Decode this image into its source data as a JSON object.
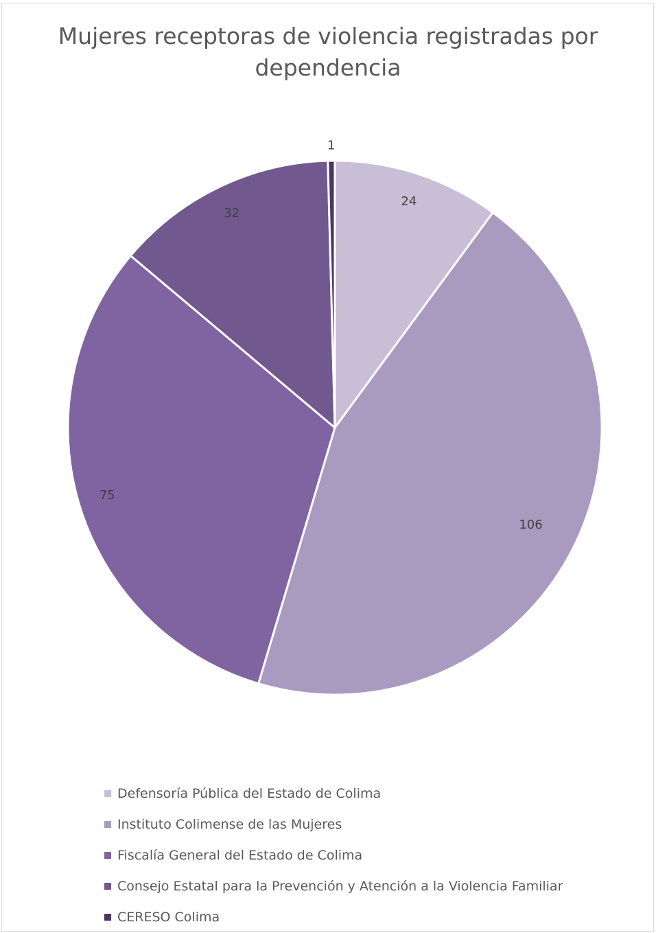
{
  "chart_data": {
    "type": "pie",
    "title": "Mujeres receptoras de violencia registradas por dependencia",
    "title_lines": [
      "Mujeres receptoras de violencia registradas por",
      "dependencia"
    ],
    "slices": [
      {
        "name": "Defensoría Pública del Estado de Colima",
        "value": 24,
        "label": "24",
        "color": "#c8bfd7"
      },
      {
        "name": "Instituto Colimense de las Mujeres",
        "value": 106,
        "label": "106",
        "color": "#a99bbf"
      },
      {
        "name": "Fiscalía General del Estado de Colima",
        "value": 75,
        "label": "75",
        "color": "#8064a2"
      },
      {
        "name": "Consejo Estatal para la Prevención y Atención a la Violencia Familiar",
        "value": 32,
        "label": "32",
        "color": "#71588f"
      },
      {
        "name": "CERESO Colima",
        "value": 1,
        "label": "1",
        "color": "#4b3861"
      }
    ],
    "legend_position": "bottom"
  }
}
